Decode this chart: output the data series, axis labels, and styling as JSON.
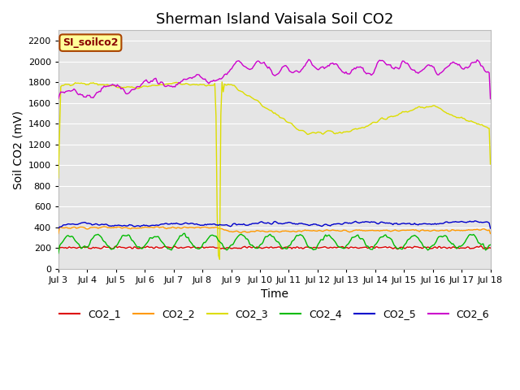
{
  "title": "Sherman Island Vaisala Soil CO2",
  "ylabel": "Soil CO2 (mV)",
  "xlabel": "Time",
  "legend_label": "SI_soilco2",
  "xlim": [
    0,
    15
  ],
  "ylim": [
    0,
    2300
  ],
  "yticks": [
    0,
    200,
    400,
    600,
    800,
    1000,
    1200,
    1400,
    1600,
    1800,
    2000,
    2200
  ],
  "xtick_labels": [
    "Jul 3",
    "Jul 4",
    "Jul 5",
    "Jul 6",
    "Jul 7",
    "Jul 8",
    "Jul 9",
    "Jul 10",
    "Jul 11",
    "Jul 12",
    "Jul 13",
    "Jul 14",
    "Jul 15",
    "Jul 16",
    "Jul 17",
    "Jul 18"
  ],
  "colors": {
    "CO2_1": "#dd0000",
    "CO2_2": "#ff9900",
    "CO2_3": "#dddd00",
    "CO2_4": "#00bb00",
    "CO2_5": "#0000cc",
    "CO2_6": "#cc00cc"
  },
  "background_color": "#e5e5e5",
  "grid_color": "#ffffff",
  "title_fontsize": 13,
  "axis_fontsize": 10,
  "tick_fontsize": 8,
  "legend_box_facecolor": "#ffff99",
  "legend_box_edgecolor": "#aa4400",
  "legend_text_color": "#880000"
}
